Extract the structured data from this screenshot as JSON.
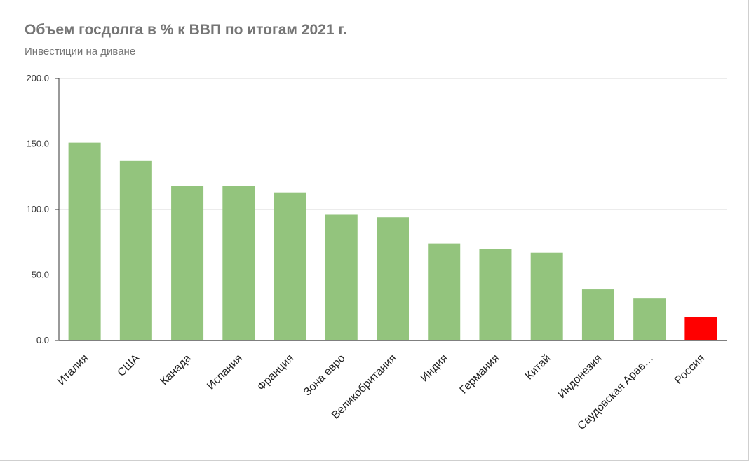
{
  "title": "Объем госдолга в % к ВВП по итогам 2021 г.",
  "subtitle": "Инвестиции на диване",
  "colors": {
    "bar": "#93c47d",
    "highlight": "#ff0000",
    "grid": "#d9d9d9",
    "axis": "#333333"
  },
  "chart_data": {
    "type": "bar",
    "title": "Объем госдолга в % к ВВП по итогам 2021 г.",
    "subtitle": "Инвестиции на диване",
    "xlabel": "",
    "ylabel": "",
    "ylim": [
      0,
      200
    ],
    "yticks": [
      "0.0",
      "50.0",
      "100.0",
      "150.0",
      "200.0"
    ],
    "grid": true,
    "legend": "none",
    "categories": [
      "Италия",
      "США",
      "Канада",
      "Испания",
      "Франция",
      "Зона евро",
      "Великобритания",
      "Индия",
      "Германия",
      "Китай",
      "Индонезия",
      "Саудовская Арав…",
      "Россия"
    ],
    "values": [
      151,
      137,
      118,
      118,
      113,
      96,
      94,
      74,
      70,
      67,
      39,
      32,
      18
    ],
    "highlight_category": "Россия"
  }
}
